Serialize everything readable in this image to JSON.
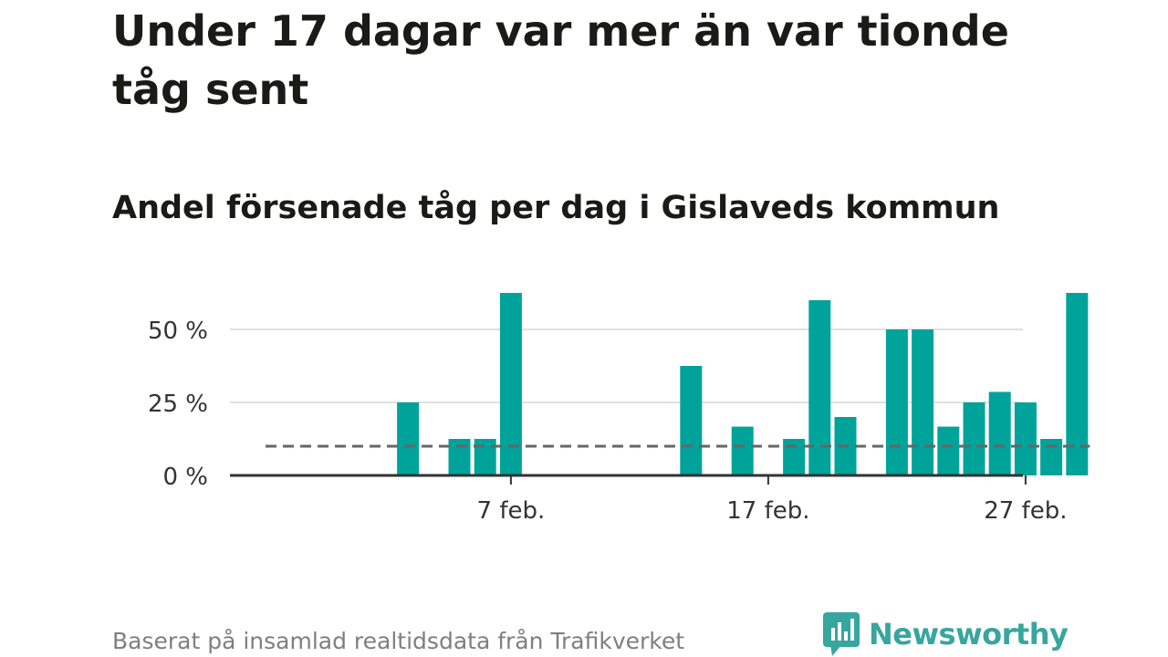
{
  "header": {
    "title": "Under 17 dagar var mer än var tionde tåg sent",
    "subtitle": "Andel försenade tåg per dag i Gislaveds kommun"
  },
  "footer": {
    "source": "Baserat på insamlad realtidsdata från Trafikverket",
    "logo_text": "Newsworthy"
  },
  "colors": {
    "bar": "#00a39a",
    "reference_line": "#666666",
    "grid": "#e0e0e0",
    "axis": "#333333",
    "logo": "#37a69e"
  },
  "chart_data": {
    "type": "bar",
    "x": [
      "2024-01-31",
      "2024-02-01",
      "2024-02-02",
      "2024-02-03",
      "2024-02-04",
      "2024-02-05",
      "2024-02-06",
      "2024-02-07",
      "2024-02-08",
      "2024-02-09",
      "2024-02-10",
      "2024-02-11",
      "2024-02-12",
      "2024-02-13",
      "2024-02-14",
      "2024-02-15",
      "2024-02-16",
      "2024-02-17",
      "2024-02-18",
      "2024-02-19",
      "2024-02-20",
      "2024-02-21",
      "2024-02-22",
      "2024-02-23",
      "2024-02-24",
      "2024-02-25",
      "2024-02-26",
      "2024-02-27",
      "2024-02-28",
      "2024-02-29"
    ],
    "values": [
      0,
      0,
      0,
      25,
      0,
      12.5,
      12.5,
      62.5,
      0,
      0,
      0,
      0,
      0,
      0,
      37.5,
      0,
      16.7,
      0,
      12.5,
      60,
      20,
      0,
      50,
      50,
      16.7,
      25,
      28.6,
      25,
      12.5,
      62.5
    ],
    "reference_line": {
      "value": 10,
      "style": "dashed"
    },
    "y_ticks": [
      {
        "value": 0,
        "label": "0 %"
      },
      {
        "value": 25,
        "label": "25 %"
      },
      {
        "value": 50,
        "label": "50 %"
      }
    ],
    "x_ticks": [
      {
        "x": "2024-02-07",
        "label": "7 feb."
      },
      {
        "x": "2024-02-17",
        "label": "17 feb."
      },
      {
        "x": "2024-02-27",
        "label": "27 feb."
      }
    ],
    "ylim": [
      0,
      65
    ],
    "grid": true,
    "title": "Andel försenade tåg per dag i Gislaveds kommun",
    "xlabel": "",
    "ylabel": ""
  }
}
